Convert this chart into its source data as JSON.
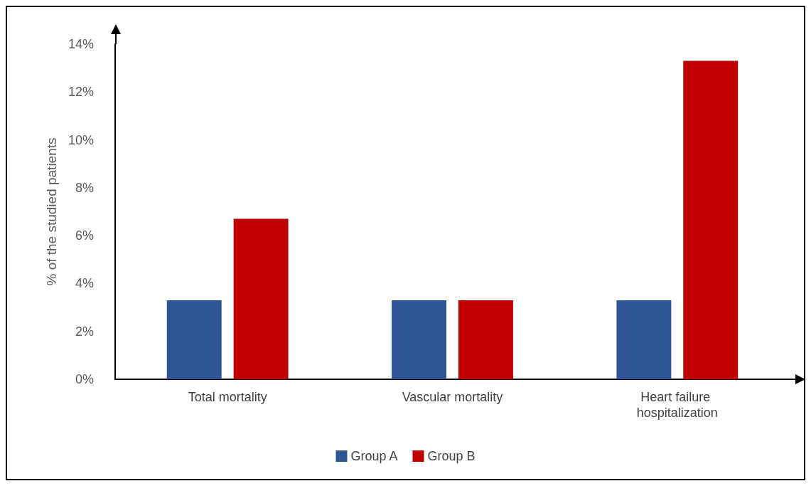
{
  "chart_data": {
    "type": "bar",
    "ylabel": "% of the studied patients",
    "categories": [
      "Total mortality",
      "Vascular mortality",
      "Heart failure hospitalization"
    ],
    "series": [
      {
        "name": "Group A",
        "color": "#2f5597",
        "values": [
          3.3,
          3.3,
          3.3
        ]
      },
      {
        "name": "Group B",
        "color": "#c00000",
        "values": [
          6.7,
          3.3,
          13.3
        ]
      }
    ],
    "ylim": [
      0,
      14
    ],
    "yticks": [
      {
        "value": 0,
        "label": "0%"
      },
      {
        "value": 2,
        "label": "2%"
      },
      {
        "value": 4,
        "label": "4%"
      },
      {
        "value": 6,
        "label": "6%"
      },
      {
        "value": 8,
        "label": "8%"
      },
      {
        "value": 10,
        "label": "10%"
      },
      {
        "value": 12,
        "label": "12%"
      },
      {
        "value": 14,
        "label": "14%"
      }
    ],
    "grid": false,
    "legend": "bottom"
  }
}
